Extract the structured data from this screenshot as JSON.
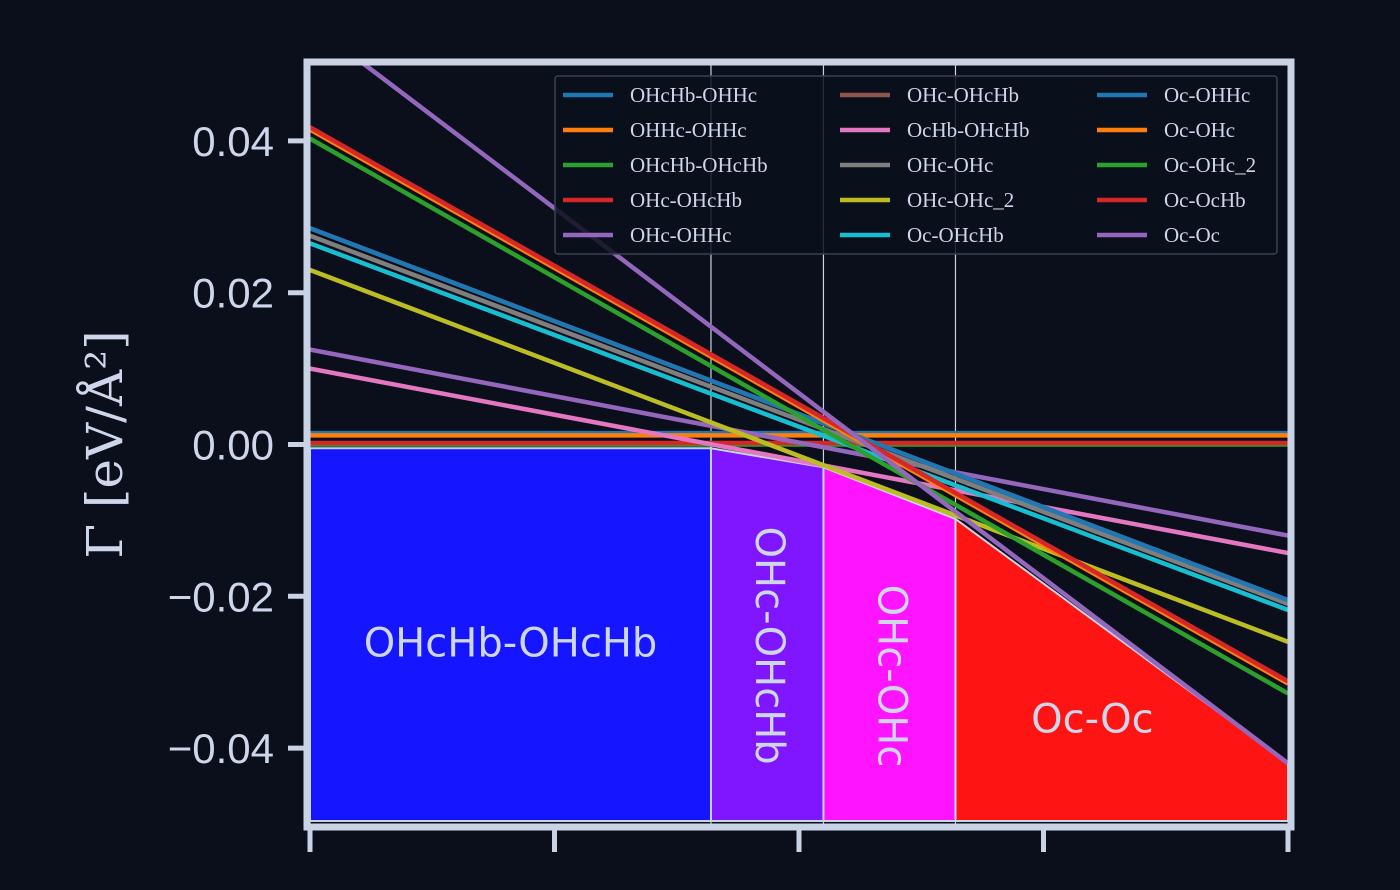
{
  "chart_data": {
    "type": "line",
    "ylabel": "Γ [eV/Å²]",
    "xlim": [
      0,
      4
    ],
    "ylim": [
      -0.05,
      0.05
    ],
    "yticks": [
      {
        "value": 0.04,
        "label": "0.04"
      },
      {
        "value": 0.02,
        "label": "0.02"
      },
      {
        "value": 0.0,
        "label": "0.00"
      },
      {
        "value": -0.02,
        "label": "−0.02"
      },
      {
        "value": -0.04,
        "label": "−0.04"
      }
    ],
    "xticks": [
      0,
      1,
      2,
      3,
      4
    ],
    "grid": false,
    "legend_position": "top-right",
    "series": [
      {
        "name": "OHcHb-OHHc",
        "color": "#1f77b4",
        "y0": 0.0015,
        "y1": 0.0015
      },
      {
        "name": "OHHc-OHHc",
        "color": "#ff7f0e",
        "y0": 0.0012,
        "y1": 0.0012
      },
      {
        "name": "OHcHb-OHcHb",
        "color": "#2ca02c",
        "y0": 0.0,
        "y1": 0.0
      },
      {
        "name": "OHc-OHcHb",
        "color": "#d62728",
        "y0": 0.0002,
        "y1": 0.0002
      },
      {
        "name": "OHc-OHHc",
        "color": "#9467bd",
        "y0": 0.0125,
        "y1": -0.012
      },
      {
        "name": "OHc-OHcHb",
        "color": "#8c564b",
        "y0": 0.0285,
        "y1": -0.0205
      },
      {
        "name": "OcHb-OHcHb",
        "color": "#e377c2",
        "y0": 0.01,
        "y1": -0.0143
      },
      {
        "name": "OHc-OHc",
        "color": "#7f7f7f",
        "y0": 0.0275,
        "y1": -0.021
      },
      {
        "name": "OHc-OHc_2",
        "color": "#bcbd22",
        "y0": 0.023,
        "y1": -0.026
      },
      {
        "name": "Oc-OHcHb",
        "color": "#17becf",
        "y0": 0.0265,
        "y1": -0.0218
      },
      {
        "name": "Oc-OHHc",
        "color": "#1f77b4",
        "y0": 0.0285,
        "y1": -0.0205
      },
      {
        "name": "Oc-OHc",
        "color": "#ff7f0e",
        "y0": 0.0415,
        "y1": -0.0315
      },
      {
        "name": "Oc-OHc_2",
        "color": "#2ca02c",
        "y0": 0.0403,
        "y1": -0.0328
      },
      {
        "name": "Oc-OcHb",
        "color": "#d62728",
        "y0": 0.0418,
        "y1": -0.0312
      },
      {
        "name": "Oc-Oc",
        "color": "#9467bd",
        "y0": 0.0555,
        "y1": -0.042
      }
    ],
    "vlines": [
      1.64,
      2.1,
      2.64
    ],
    "regions": [
      {
        "label": "OHcHb-OHcHb",
        "color": "#1515ff",
        "x0": 0.0,
        "x1": 1.64,
        "top": [
          [
            0.0,
            -0.0005
          ],
          [
            1.64,
            -0.0005
          ]
        ],
        "label_x": 0.82,
        "label_y": -0.0265,
        "rotate": 0
      },
      {
        "label": "OHc-OHcHb",
        "color": "#7f16ff",
        "x0": 1.64,
        "x1": 2.1,
        "top": [
          [
            1.64,
            -0.0005
          ],
          [
            2.1,
            -0.003
          ]
        ],
        "label_x": 1.87,
        "label_y": -0.0265,
        "rotate": 90
      },
      {
        "label": "OHc-OHc",
        "color": "#ff14ff",
        "x0": 2.1,
        "x1": 2.64,
        "top": [
          [
            2.1,
            -0.003
          ],
          [
            2.64,
            -0.0098
          ]
        ],
        "label_x": 2.37,
        "label_y": -0.0305,
        "rotate": 90
      },
      {
        "label": "Oc-Oc",
        "color": "#ff1414",
        "x0": 2.64,
        "x1": 4.0,
        "top": [
          [
            2.64,
            -0.0098
          ],
          [
            4.0,
            -0.042
          ]
        ],
        "label_x": 3.2,
        "label_y": -0.0365,
        "rotate": 0
      }
    ]
  }
}
